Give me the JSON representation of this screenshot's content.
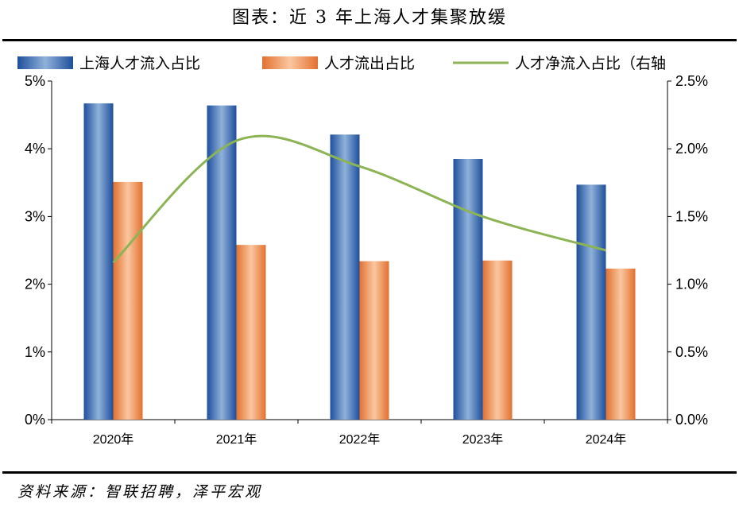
{
  "page": {
    "title": "图表：近 3 年上海人才集聚放缓",
    "source": "资料来源：智联招聘，泽平宏观"
  },
  "chart_data": {
    "type": "bar",
    "categories": [
      "2020年",
      "2021年",
      "2022年",
      "2023年",
      "2024年"
    ],
    "series": [
      {
        "name": "上海人才流入占比",
        "kind": "bar",
        "axis": "left",
        "color": "#2E6BB5",
        "values": [
          4.67,
          4.64,
          4.21,
          3.85,
          3.47
        ]
      },
      {
        "name": "人才流出占比",
        "kind": "bar",
        "axis": "left",
        "color": "#EE8A4A",
        "values": [
          3.51,
          2.58,
          2.34,
          2.35,
          2.23
        ]
      },
      {
        "name": "人才净流入占比（右轴",
        "kind": "line",
        "axis": "right",
        "color": "#8CB455",
        "values": [
          1.16,
          2.06,
          1.87,
          1.5,
          1.25
        ]
      }
    ],
    "y_left": {
      "min": 0,
      "max": 5,
      "ticks": [
        "0%",
        "1%",
        "2%",
        "3%",
        "4%",
        "5%"
      ]
    },
    "y_right": {
      "min": 0,
      "max": 2.5,
      "ticks": [
        "0.0%",
        "0.5%",
        "1.0%",
        "1.5%",
        "2.0%",
        "2.5%"
      ]
    },
    "legend": "top",
    "grid": false
  }
}
